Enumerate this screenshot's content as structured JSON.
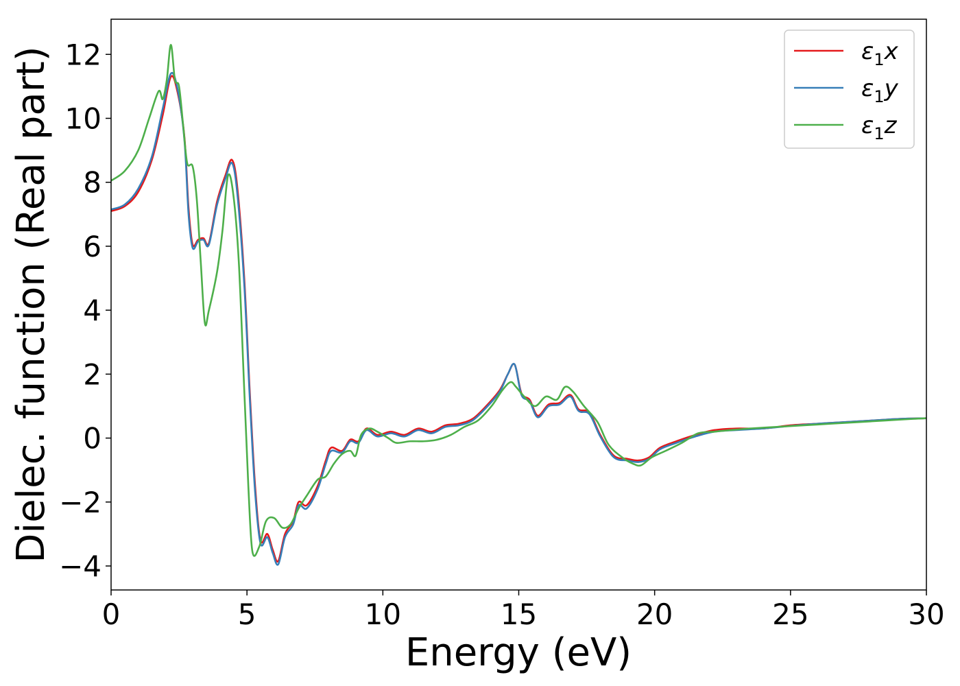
{
  "chart_data": {
    "type": "line",
    "title": "",
    "xlabel": "Energy (eV)",
    "ylabel": "Dielec. function (Real part)",
    "xlim": [
      0,
      30
    ],
    "ylim": [
      -4.75,
      13.1
    ],
    "xticks": [
      0,
      5,
      10,
      15,
      20,
      25,
      30
    ],
    "yticks": [
      -4,
      -2,
      0,
      2,
      4,
      6,
      8,
      10,
      12
    ],
    "grid": false,
    "legend": "top-right",
    "series": [
      {
        "sym": "ε",
        "sub": "1",
        "axis": "x",
        "color": "#e41a1c",
        "points": [
          [
            0,
            7.1
          ],
          [
            0.5,
            7.25
          ],
          [
            1.0,
            7.7
          ],
          [
            1.5,
            8.7
          ],
          [
            1.9,
            10.1
          ],
          [
            2.2,
            11.3
          ],
          [
            2.45,
            10.8
          ],
          [
            2.7,
            9.4
          ],
          [
            2.85,
            7.2
          ],
          [
            3.0,
            6.05
          ],
          [
            3.2,
            6.2
          ],
          [
            3.4,
            6.25
          ],
          [
            3.6,
            6.1
          ],
          [
            3.9,
            7.4
          ],
          [
            4.2,
            8.2
          ],
          [
            4.45,
            8.7
          ],
          [
            4.65,
            7.8
          ],
          [
            4.9,
            5.0
          ],
          [
            5.1,
            1.5
          ],
          [
            5.3,
            -1.5
          ],
          [
            5.5,
            -3.2
          ],
          [
            5.75,
            -3.0
          ],
          [
            5.95,
            -3.5
          ],
          [
            6.15,
            -3.85
          ],
          [
            6.4,
            -3.0
          ],
          [
            6.7,
            -2.6
          ],
          [
            6.9,
            -2.0
          ],
          [
            7.2,
            -2.1
          ],
          [
            7.6,
            -1.5
          ],
          [
            7.9,
            -0.7
          ],
          [
            8.1,
            -0.3
          ],
          [
            8.5,
            -0.4
          ],
          [
            8.8,
            -0.05
          ],
          [
            9.1,
            -0.1
          ],
          [
            9.4,
            0.3
          ],
          [
            9.8,
            0.1
          ],
          [
            10.3,
            0.2
          ],
          [
            10.8,
            0.1
          ],
          [
            11.3,
            0.3
          ],
          [
            11.8,
            0.2
          ],
          [
            12.3,
            0.4
          ],
          [
            12.8,
            0.45
          ],
          [
            13.3,
            0.6
          ],
          [
            13.8,
            1.0
          ],
          [
            14.3,
            1.5
          ],
          [
            14.6,
            2.0
          ],
          [
            14.85,
            2.3
          ],
          [
            15.1,
            1.4
          ],
          [
            15.4,
            1.2
          ],
          [
            15.7,
            0.7
          ],
          [
            16.1,
            1.05
          ],
          [
            16.5,
            1.1
          ],
          [
            16.9,
            1.35
          ],
          [
            17.2,
            0.9
          ],
          [
            17.6,
            0.8
          ],
          [
            18.0,
            0.1
          ],
          [
            18.5,
            -0.55
          ],
          [
            19.0,
            -0.65
          ],
          [
            19.4,
            -0.7
          ],
          [
            19.8,
            -0.6
          ],
          [
            20.2,
            -0.3
          ],
          [
            20.8,
            -0.1
          ],
          [
            21.5,
            0.1
          ],
          [
            22.2,
            0.25
          ],
          [
            23.0,
            0.3
          ],
          [
            24.0,
            0.3
          ],
          [
            25.0,
            0.4
          ],
          [
            26.0,
            0.45
          ],
          [
            27.0,
            0.5
          ],
          [
            28.0,
            0.55
          ],
          [
            29.0,
            0.6
          ],
          [
            30.0,
            0.62
          ]
        ]
      },
      {
        "sym": "ε",
        "sub": "1",
        "axis": "y",
        "color": "#377eb8",
        "points": [
          [
            0,
            7.15
          ],
          [
            0.5,
            7.3
          ],
          [
            1.0,
            7.8
          ],
          [
            1.5,
            8.8
          ],
          [
            1.9,
            10.3
          ],
          [
            2.2,
            11.4
          ],
          [
            2.45,
            10.9
          ],
          [
            2.7,
            9.3
          ],
          [
            2.85,
            7.0
          ],
          [
            3.0,
            5.95
          ],
          [
            3.2,
            6.15
          ],
          [
            3.4,
            6.2
          ],
          [
            3.6,
            6.05
          ],
          [
            3.9,
            7.3
          ],
          [
            4.2,
            8.1
          ],
          [
            4.45,
            8.6
          ],
          [
            4.65,
            7.6
          ],
          [
            4.9,
            4.8
          ],
          [
            5.1,
            1.3
          ],
          [
            5.3,
            -1.7
          ],
          [
            5.5,
            -3.3
          ],
          [
            5.75,
            -3.1
          ],
          [
            5.95,
            -3.6
          ],
          [
            6.15,
            -3.95
          ],
          [
            6.4,
            -3.1
          ],
          [
            6.7,
            -2.7
          ],
          [
            6.9,
            -2.1
          ],
          [
            7.2,
            -2.2
          ],
          [
            7.6,
            -1.6
          ],
          [
            7.9,
            -0.8
          ],
          [
            8.1,
            -0.4
          ],
          [
            8.5,
            -0.45
          ],
          [
            8.8,
            -0.1
          ],
          [
            9.1,
            -0.15
          ],
          [
            9.4,
            0.25
          ],
          [
            9.8,
            0.05
          ],
          [
            10.3,
            0.15
          ],
          [
            10.8,
            0.05
          ],
          [
            11.3,
            0.25
          ],
          [
            11.8,
            0.15
          ],
          [
            12.3,
            0.35
          ],
          [
            12.8,
            0.4
          ],
          [
            13.3,
            0.55
          ],
          [
            13.8,
            0.95
          ],
          [
            14.3,
            1.45
          ],
          [
            14.6,
            2.0
          ],
          [
            14.85,
            2.3
          ],
          [
            15.1,
            1.35
          ],
          [
            15.4,
            1.15
          ],
          [
            15.7,
            0.65
          ],
          [
            16.1,
            1.0
          ],
          [
            16.5,
            1.05
          ],
          [
            16.9,
            1.3
          ],
          [
            17.2,
            0.85
          ],
          [
            17.6,
            0.75
          ],
          [
            18.0,
            0.05
          ],
          [
            18.5,
            -0.6
          ],
          [
            19.0,
            -0.7
          ],
          [
            19.4,
            -0.75
          ],
          [
            19.8,
            -0.65
          ],
          [
            20.2,
            -0.35
          ],
          [
            20.8,
            -0.15
          ],
          [
            21.5,
            0.05
          ],
          [
            22.2,
            0.2
          ],
          [
            23.0,
            0.25
          ],
          [
            24.0,
            0.3
          ],
          [
            25.0,
            0.38
          ],
          [
            26.0,
            0.45
          ],
          [
            27.0,
            0.5
          ],
          [
            28.0,
            0.55
          ],
          [
            29.0,
            0.6
          ],
          [
            30.0,
            0.62
          ]
        ]
      },
      {
        "sym": "ε",
        "sub": "1",
        "axis": "z",
        "color": "#4daf4a",
        "points": [
          [
            0,
            8.05
          ],
          [
            0.5,
            8.35
          ],
          [
            1.0,
            9.0
          ],
          [
            1.4,
            10.0
          ],
          [
            1.75,
            10.85
          ],
          [
            1.9,
            10.6
          ],
          [
            2.05,
            11.2
          ],
          [
            2.2,
            12.3
          ],
          [
            2.35,
            11.2
          ],
          [
            2.5,
            11.0
          ],
          [
            2.65,
            9.8
          ],
          [
            2.8,
            8.6
          ],
          [
            3.0,
            8.5
          ],
          [
            3.15,
            7.5
          ],
          [
            3.3,
            5.5
          ],
          [
            3.45,
            3.6
          ],
          [
            3.6,
            4.0
          ],
          [
            3.9,
            5.2
          ],
          [
            4.1,
            6.5
          ],
          [
            4.3,
            8.2
          ],
          [
            4.5,
            7.6
          ],
          [
            4.7,
            5.5
          ],
          [
            4.9,
            1.5
          ],
          [
            5.05,
            -1.5
          ],
          [
            5.2,
            -3.55
          ],
          [
            5.45,
            -3.4
          ],
          [
            5.7,
            -2.6
          ],
          [
            6.0,
            -2.5
          ],
          [
            6.3,
            -2.8
          ],
          [
            6.6,
            -2.7
          ],
          [
            6.9,
            -2.2
          ],
          [
            7.2,
            -1.8
          ],
          [
            7.6,
            -1.3
          ],
          [
            7.9,
            -1.2
          ],
          [
            8.2,
            -0.8
          ],
          [
            8.5,
            -0.5
          ],
          [
            8.8,
            -0.4
          ],
          [
            9.0,
            -0.55
          ],
          [
            9.2,
            0.1
          ],
          [
            9.5,
            0.3
          ],
          [
            9.8,
            0.2
          ],
          [
            10.2,
            0.0
          ],
          [
            10.5,
            -0.15
          ],
          [
            11.0,
            -0.1
          ],
          [
            11.5,
            -0.1
          ],
          [
            12.0,
            -0.05
          ],
          [
            12.5,
            0.1
          ],
          [
            13.0,
            0.35
          ],
          [
            13.5,
            0.55
          ],
          [
            14.0,
            1.0
          ],
          [
            14.4,
            1.5
          ],
          [
            14.7,
            1.75
          ],
          [
            14.9,
            1.6
          ],
          [
            15.2,
            1.3
          ],
          [
            15.6,
            1.0
          ],
          [
            16.0,
            1.3
          ],
          [
            16.4,
            1.2
          ],
          [
            16.7,
            1.6
          ],
          [
            17.0,
            1.45
          ],
          [
            17.4,
            1.0
          ],
          [
            17.9,
            0.5
          ],
          [
            18.3,
            -0.2
          ],
          [
            18.8,
            -0.6
          ],
          [
            19.2,
            -0.8
          ],
          [
            19.5,
            -0.85
          ],
          [
            19.9,
            -0.6
          ],
          [
            20.4,
            -0.4
          ],
          [
            21.0,
            -0.15
          ],
          [
            21.6,
            0.15
          ],
          [
            22.2,
            0.2
          ],
          [
            22.8,
            0.25
          ],
          [
            23.5,
            0.3
          ],
          [
            24.5,
            0.35
          ],
          [
            25.5,
            0.4
          ],
          [
            26.5,
            0.45
          ],
          [
            27.5,
            0.5
          ],
          [
            28.5,
            0.55
          ],
          [
            29.5,
            0.6
          ],
          [
            30.0,
            0.62
          ]
        ]
      }
    ]
  }
}
